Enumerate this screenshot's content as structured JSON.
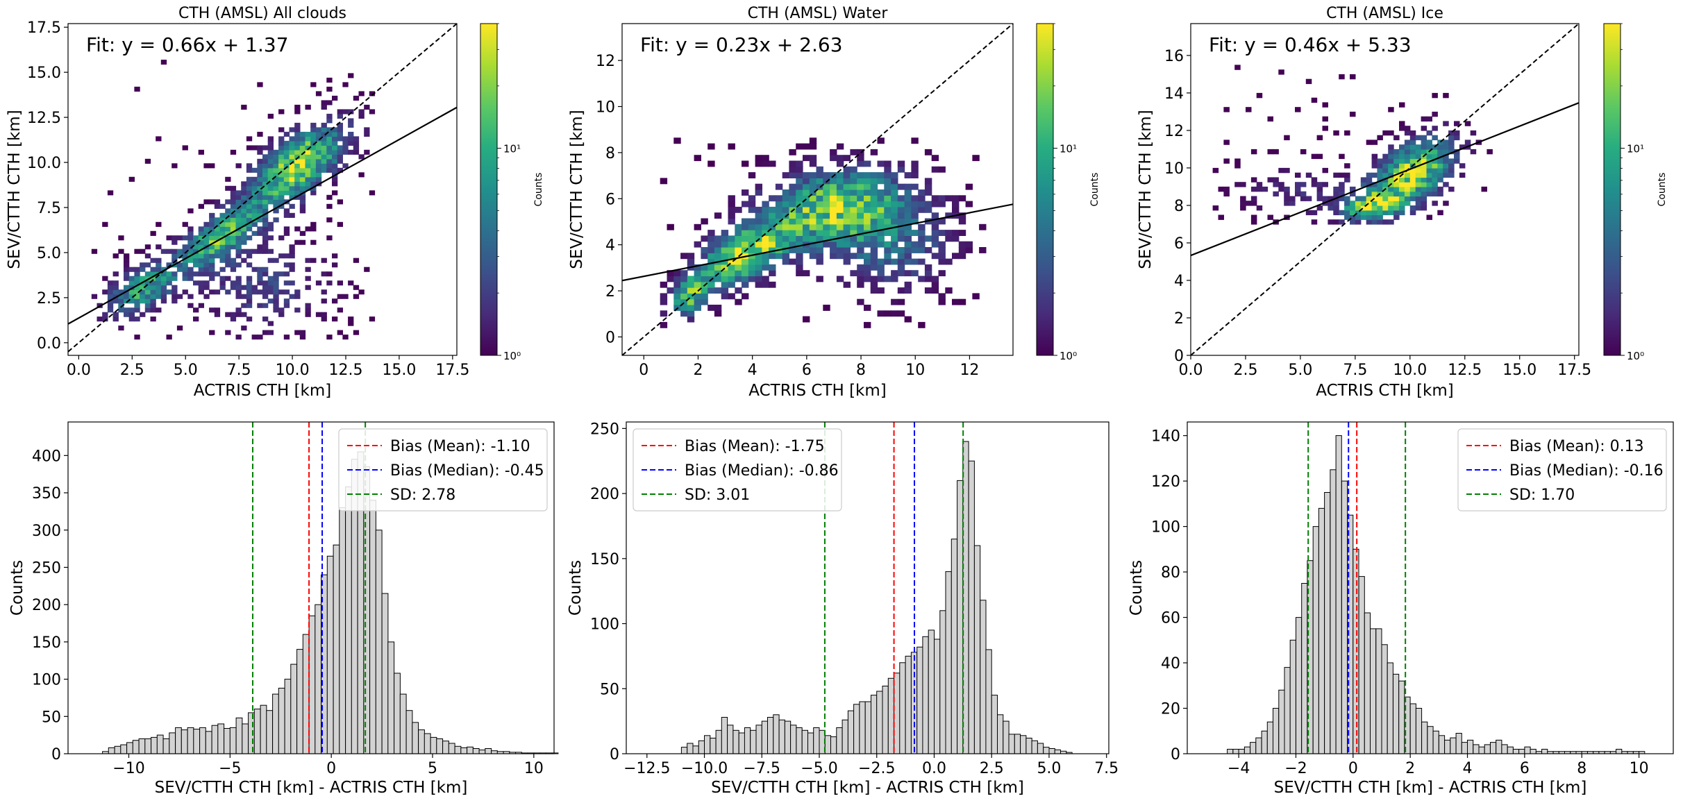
{
  "chart_data": [
    {
      "type": "heatmap",
      "title": "CTH (AMSL) All clouds",
      "xlabel": "ACTRIS CTH [km]",
      "ylabel": "SEV/CTTH CTH [km]",
      "xlim": [
        -0.5,
        17.7
      ],
      "ylim": [
        -0.7,
        17.7
      ],
      "xticks": [
        0,
        2.5,
        5,
        7.5,
        10,
        12.5,
        15,
        17.5
      ],
      "xtick_labels": [
        "0.0",
        "2.5",
        "5.0",
        "7.5",
        "10.0",
        "12.5",
        "15.0",
        "17.5"
      ],
      "yticks": [
        0,
        2.5,
        5,
        7.5,
        10,
        12.5,
        15,
        17.5
      ],
      "ytick_labels": [
        "0.0",
        "2.5",
        "5.0",
        "7.5",
        "10.0",
        "12.5",
        "15.0",
        "17.5"
      ],
      "fit_text": "Fit: y = 0.66x + 1.37",
      "fit": {
        "slope": 0.66,
        "intercept": 1.37
      },
      "one_to_one_line": true,
      "colorbar": {
        "label": "Counts",
        "scale": "log",
        "ticks": [
          {
            "value": 1,
            "label": "10⁰"
          },
          {
            "value": 10,
            "label": "10¹"
          }
        ],
        "range": [
          1,
          40
        ],
        "colormap": "viridis"
      },
      "density_model": {
        "data_range_x": [
          0.6,
          13.8
        ],
        "data_range_y": [
          0.2,
          15.6
        ],
        "clusters": [
          {
            "x": 10.2,
            "y": 9.8,
            "sx": 1.6,
            "sy": 1.6,
            "corr": 0.6,
            "weight": 1.0
          },
          {
            "x": 6.5,
            "y": 5.8,
            "sx": 1.5,
            "sy": 1.3,
            "corr": 0.7,
            "weight": 0.75
          },
          {
            "x": 2.8,
            "y": 2.8,
            "sx": 1.2,
            "sy": 1.1,
            "corr": 0.5,
            "weight": 0.7
          },
          {
            "x": 8.5,
            "y": 3.0,
            "sx": 2.2,
            "sy": 1.8,
            "corr": 0.0,
            "weight": 0.35
          }
        ]
      }
    },
    {
      "type": "heatmap",
      "title": "CTH (AMSL) Water",
      "xlabel": "ACTRIS CTH [km]",
      "ylabel": "SEV/CTTH CTH [km]",
      "xlim": [
        -0.8,
        13.6
      ],
      "ylim": [
        -0.8,
        13.6
      ],
      "xticks": [
        0,
        2,
        4,
        6,
        8,
        10,
        12
      ],
      "xtick_labels": [
        "0",
        "2",
        "4",
        "6",
        "8",
        "10",
        "12"
      ],
      "yticks": [
        0,
        2,
        4,
        6,
        8,
        10,
        12
      ],
      "ytick_labels": [
        "0",
        "2",
        "4",
        "6",
        "8",
        "10",
        "12"
      ],
      "fit_text": "Fit: y = 0.23x + 2.63",
      "fit": {
        "slope": 0.23,
        "intercept": 2.63
      },
      "one_to_one_line": true,
      "colorbar": {
        "label": "Counts",
        "scale": "log",
        "ticks": [
          {
            "value": 1,
            "label": "10⁰"
          },
          {
            "value": 10,
            "label": "10¹"
          }
        ],
        "range": [
          1,
          40
        ],
        "colormap": "viridis"
      },
      "density_model": {
        "data_range_x": [
          0.6,
          12.6
        ],
        "data_range_y": [
          0.4,
          8.6
        ],
        "clusters": [
          {
            "x": 3.5,
            "y": 3.4,
            "sx": 1.2,
            "sy": 1.0,
            "corr": 0.5,
            "weight": 1.0
          },
          {
            "x": 1.5,
            "y": 1.6,
            "sx": 0.6,
            "sy": 0.7,
            "corr": 0.4,
            "weight": 0.7
          },
          {
            "x": 6.8,
            "y": 5.6,
            "sx": 1.9,
            "sy": 1.2,
            "corr": 0.2,
            "weight": 0.8
          },
          {
            "x": 9.0,
            "y": 4.0,
            "sx": 1.8,
            "sy": 1.6,
            "corr": 0.0,
            "weight": 0.45
          }
        ]
      }
    },
    {
      "type": "heatmap",
      "title": "CTH (AMSL) Ice",
      "xlabel": "ACTRIS CTH [km]",
      "ylabel": "SEV/CTTH CTH [km]",
      "xlim": [
        0,
        17.7
      ],
      "ylim": [
        0,
        17.7
      ],
      "xticks": [
        0,
        2.5,
        5,
        7.5,
        10,
        12.5,
        15,
        17.5
      ],
      "xtick_labels": [
        "0.0",
        "2.5",
        "5.0",
        "7.5",
        "10.0",
        "12.5",
        "15.0",
        "17.5"
      ],
      "yticks": [
        0,
        2,
        4,
        6,
        8,
        10,
        12,
        14,
        16
      ],
      "ytick_labels": [
        "0",
        "2",
        "4",
        "6",
        "8",
        "10",
        "12",
        "14",
        "16"
      ],
      "fit_text": "Fit: y = 0.46x + 5.33",
      "fit": {
        "slope": 0.46,
        "intercept": 5.33
      },
      "one_to_one_line": true,
      "colorbar": {
        "label": "Counts",
        "scale": "log",
        "ticks": [
          {
            "value": 1,
            "label": "10⁰"
          },
          {
            "value": 10,
            "label": "10¹"
          }
        ],
        "range": [
          1,
          40
        ],
        "colormap": "viridis"
      },
      "density_model": {
        "data_range_x": [
          1.0,
          13.8
        ],
        "data_range_y": [
          7.0,
          15.4
        ],
        "clusters": [
          {
            "x": 10.0,
            "y": 9.6,
            "sx": 1.4,
            "sy": 1.4,
            "corr": 0.5,
            "weight": 1.0
          },
          {
            "x": 8.0,
            "y": 7.8,
            "sx": 0.9,
            "sy": 0.5,
            "corr": 0.3,
            "weight": 0.7
          },
          {
            "x": 5.0,
            "y": 8.6,
            "sx": 2.2,
            "sy": 1.0,
            "corr": 0.0,
            "weight": 0.25
          }
        ]
      }
    },
    {
      "type": "bar",
      "subtype": "histogram",
      "xlabel": "SEV/CTTH CTH [km] - ACTRIS CTH [km]",
      "ylabel": "Counts",
      "xlim": [
        -13.0,
        11.0
      ],
      "ylim": [
        0,
        445
      ],
      "xticks": [
        -10,
        -5,
        0,
        5,
        10
      ],
      "xtick_labels": [
        "−10",
        "−5",
        "0",
        "5",
        "10"
      ],
      "yticks": [
        0,
        50,
        100,
        150,
        200,
        250,
        300,
        350,
        400
      ],
      "ytick_labels": [
        "0",
        "50",
        "100",
        "150",
        "200",
        "250",
        "300",
        "350",
        "400"
      ],
      "bin_start": -11.3,
      "bin_width": 0.3,
      "values": [
        3,
        8,
        10,
        12,
        15,
        18,
        20,
        20,
        22,
        25,
        20,
        28,
        35,
        32,
        35,
        33,
        35,
        30,
        38,
        40,
        34,
        35,
        48,
        40,
        55,
        60,
        65,
        58,
        80,
        88,
        100,
        120,
        140,
        160,
        185,
        200,
        240,
        265,
        280,
        330,
        358,
        395,
        405,
        385,
        340,
        300,
        215,
        150,
        108,
        80,
        58,
        42,
        32,
        27,
        22,
        20,
        17,
        14,
        10,
        8,
        9,
        7,
        5,
        7,
        4,
        3,
        3,
        2,
        2,
        1,
        1,
        1,
        1,
        1,
        1
      ],
      "bar_color": "#d3d3d3",
      "lines": [
        {
          "name": "Bias (Mean): -1.10",
          "x": -1.1,
          "color": "#ff0000"
        },
        {
          "name": "Bias (Median): -0.45",
          "x": -0.45,
          "color": "#0000ff"
        },
        {
          "name": "SD: 2.78",
          "x": [
            -3.88,
            1.68
          ],
          "color": "#008000"
        }
      ],
      "legend_position": "top-right"
    },
    {
      "type": "bar",
      "subtype": "histogram",
      "xlabel": "SEV/CTTH CTH [km] - ACTRIS CTH [km]",
      "ylabel": "Counts",
      "xlim": [
        -13.4,
        7.6
      ],
      "ylim": [
        0,
        255
      ],
      "xticks": [
        -12.5,
        -10,
        -7.5,
        -5,
        -2.5,
        0,
        2.5,
        5,
        7.5
      ],
      "xtick_labels": [
        "−12.5",
        "−10.0",
        "−7.5",
        "−5.0",
        "−2.5",
        "0.0",
        "2.5",
        "5.0",
        "7.5"
      ],
      "yticks": [
        0,
        50,
        100,
        150,
        200,
        250
      ],
      "ytick_labels": [
        "0",
        "50",
        "100",
        "150",
        "200",
        "250"
      ],
      "bin_start": -11.0,
      "bin_width": 0.25,
      "values": [
        5,
        8,
        6,
        10,
        14,
        12,
        18,
        28,
        22,
        18,
        16,
        20,
        18,
        22,
        25,
        28,
        30,
        26,
        25,
        22,
        20,
        18,
        16,
        20,
        18,
        14,
        13,
        20,
        26,
        33,
        38,
        40,
        40,
        45,
        48,
        52,
        58,
        62,
        70,
        75,
        78,
        82,
        90,
        95,
        88,
        110,
        140,
        165,
        210,
        240,
        225,
        160,
        118,
        80,
        45,
        30,
        25,
        15,
        15,
        14,
        12,
        10,
        8,
        5,
        4,
        3,
        2,
        1
      ],
      "bar_color": "#d3d3d3",
      "lines": [
        {
          "name": "Bias (Mean): -1.75",
          "x": -1.75,
          "color": "#ff0000"
        },
        {
          "name": "Bias (Median): -0.86",
          "x": -0.86,
          "color": "#0000ff"
        },
        {
          "name": "SD: 3.01",
          "x": [
            -4.76,
            1.26
          ],
          "color": "#008000"
        }
      ],
      "legend_position": "top-left"
    },
    {
      "type": "bar",
      "subtype": "histogram",
      "xlabel": "SEV/CTTH CTH [km] - ACTRIS CTH [km]",
      "ylabel": "Counts",
      "xlim": [
        -5.8,
        11.2
      ],
      "ylim": [
        0,
        146
      ],
      "xticks": [
        -4,
        -2,
        0,
        2,
        4,
        6,
        8,
        10
      ],
      "xtick_labels": [
        "−4",
        "−2",
        "0",
        "2",
        "4",
        "6",
        "8",
        "10"
      ],
      "yticks": [
        0,
        20,
        40,
        60,
        80,
        100,
        120,
        140
      ],
      "ytick_labels": [
        "0",
        "20",
        "40",
        "60",
        "80",
        "100",
        "120",
        "140"
      ],
      "bin_start": -4.4,
      "bin_width": 0.2,
      "values": [
        2,
        2,
        2,
        3,
        5,
        7,
        10,
        14,
        20,
        28,
        38,
        50,
        60,
        75,
        85,
        100,
        108,
        115,
        125,
        140,
        120,
        105,
        90,
        78,
        62,
        55,
        55,
        48,
        40,
        35,
        32,
        25,
        22,
        20,
        14,
        12,
        10,
        8,
        6,
        7,
        9,
        5,
        6,
        4,
        3,
        4,
        5,
        6,
        4,
        3,
        2,
        2,
        3,
        2,
        1,
        2,
        1,
        1,
        1,
        1,
        1,
        1,
        1,
        1,
        1,
        1,
        1,
        1,
        2,
        1,
        1,
        1,
        1
      ],
      "bar_color": "#d3d3d3",
      "lines": [
        {
          "name": "Bias (Mean): 0.13",
          "x": 0.13,
          "color": "#ff0000"
        },
        {
          "name": "Bias (Median): -0.16",
          "x": -0.16,
          "color": "#0000ff"
        },
        {
          "name": "SD: 1.70",
          "x": [
            -1.57,
            1.83
          ],
          "color": "#008000"
        }
      ],
      "legend_position": "top-right"
    }
  ]
}
